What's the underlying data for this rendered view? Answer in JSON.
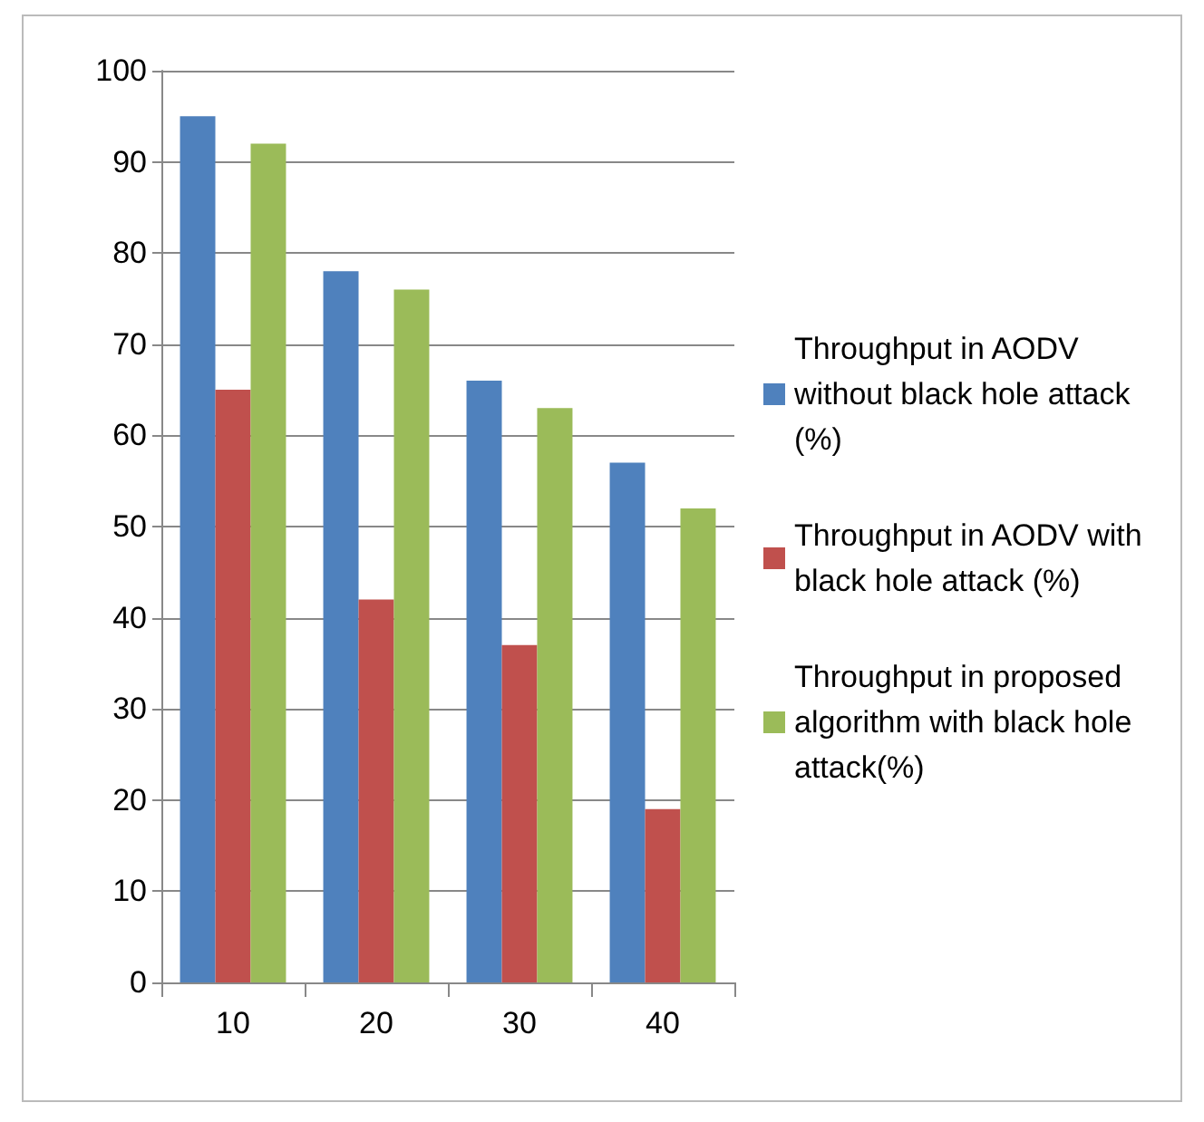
{
  "chart_data": {
    "type": "bar",
    "categories": [
      "10",
      "20",
      "30",
      "40"
    ],
    "series": [
      {
        "name": "Throughput in AODV without black hole attack (%)",
        "color": "#4f81bd",
        "values": [
          95,
          78,
          66,
          57
        ]
      },
      {
        "name": "Throughput in AODV with black hole attack (%)",
        "color": "#c0504d",
        "values": [
          65,
          42,
          37,
          19
        ]
      },
      {
        "name": "Throughput in proposed algorithm with black hole attack(%)",
        "color": "#9bbb59",
        "values": [
          92,
          76,
          63,
          52
        ]
      }
    ],
    "ylim": [
      0,
      100
    ],
    "yticks": [
      0,
      10,
      20,
      30,
      40,
      50,
      60,
      70,
      80,
      90,
      100
    ],
    "grid": "y",
    "legend": "right"
  }
}
